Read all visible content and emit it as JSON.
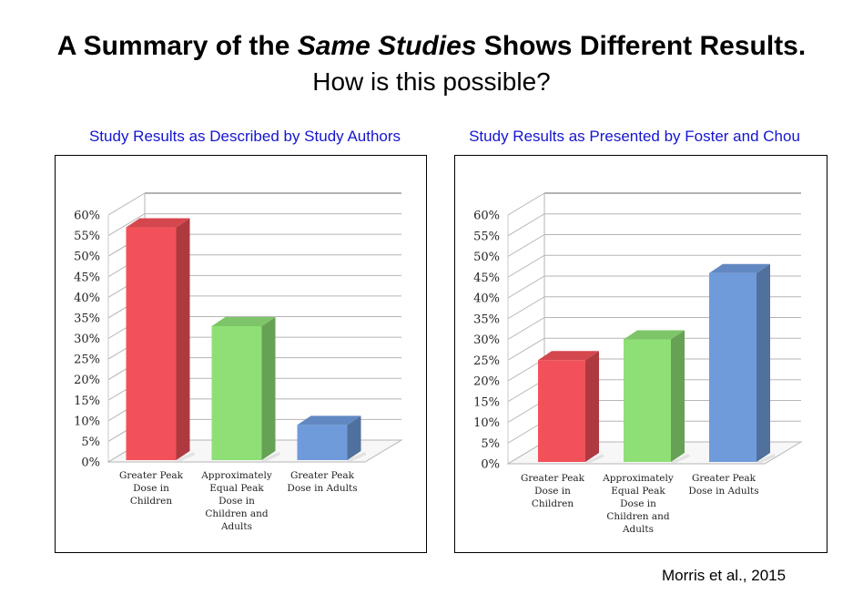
{
  "slide": {
    "title_prefix": "A Summary of the ",
    "title_emphasis": "Same Studies",
    "title_suffix": " Shows Different Results.",
    "subtitle": "How is this possible?",
    "citation": "Morris et al., 2015"
  },
  "colors": {
    "heading": "#1515d0",
    "red": "#f25159",
    "green": "#8ee076",
    "blue": "#6f9bdb"
  },
  "chart_data": [
    {
      "type": "bar",
      "title": "Study Results as Described by Study Authors",
      "categories": [
        [
          "Greater Peak",
          "Dose in",
          "Children"
        ],
        [
          "Approximately",
          "Equal Peak",
          "Dose in",
          "Children and",
          "Adults"
        ],
        [
          "Greater Peak",
          "Dose in Adults"
        ]
      ],
      "values": [
        57,
        33,
        9
      ],
      "bar_colors": [
        "#f25159",
        "#8ee076",
        "#6f9bdb"
      ],
      "ylim": [
        0,
        60
      ],
      "yticks": [
        "0%",
        "5%",
        "10%",
        "15%",
        "20%",
        "25%",
        "30%",
        "35%",
        "40%",
        "45%",
        "50%",
        "55%",
        "60%"
      ],
      "grid": true,
      "three_d": true
    },
    {
      "type": "bar",
      "title": "Study Results as Presented by Foster and Chou",
      "categories": [
        [
          "Greater Peak",
          "Dose in",
          "Children"
        ],
        [
          "Approximately",
          "Equal Peak",
          "Dose in",
          "Children and",
          "Adults"
        ],
        [
          "Greater Peak",
          "Dose in Adults"
        ]
      ],
      "values": [
        25,
        30,
        46
      ],
      "bar_colors": [
        "#f25159",
        "#8ee076",
        "#6f9bdb"
      ],
      "ylim": [
        0,
        60
      ],
      "yticks": [
        "0%",
        "5%",
        "10%",
        "15%",
        "20%",
        "25%",
        "30%",
        "35%",
        "40%",
        "45%",
        "50%",
        "55%",
        "60%"
      ],
      "grid": true,
      "three_d": true
    }
  ]
}
